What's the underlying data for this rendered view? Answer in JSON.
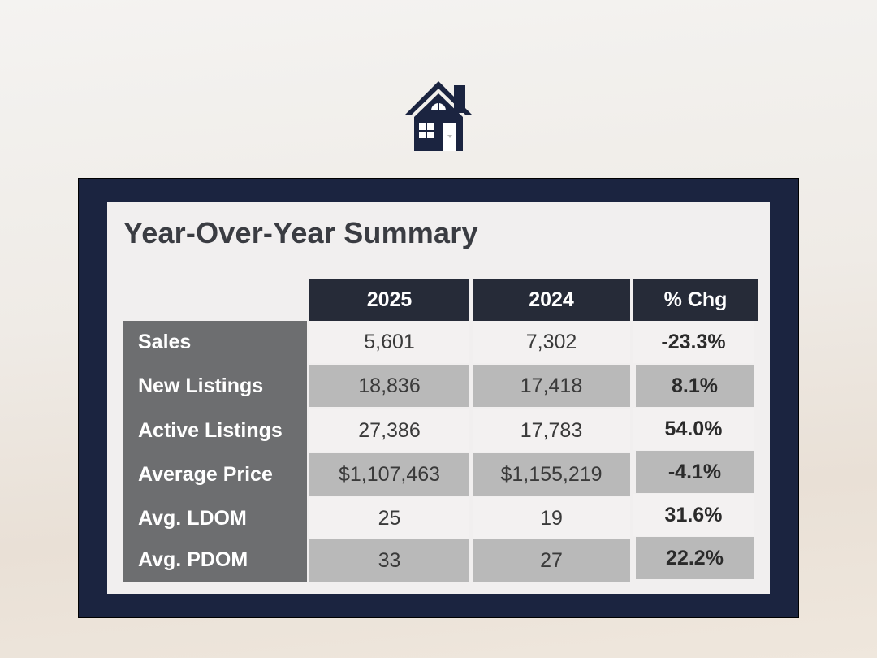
{
  "logo": {
    "icon": "house-icon",
    "color": "#1b2440"
  },
  "summary": {
    "title": "Year-Over-Year Summary",
    "columns": [
      "2025",
      "2024",
      "% Chg"
    ],
    "rows": [
      {
        "label": "Sales",
        "v2025": "5,601",
        "v2024": "7,302",
        "chg": "-23.3%"
      },
      {
        "label": "New Listings",
        "v2025": "18,836",
        "v2024": "17,418",
        "chg": "8.1%"
      },
      {
        "label": "Active Listings",
        "v2025": "27,386",
        "v2024": "17,783",
        "chg": "54.0%"
      },
      {
        "label": "Average Price",
        "v2025": "$1,107,463",
        "v2024": "$1,155,219",
        "chg": "-4.1%"
      },
      {
        "label": "Avg. LDOM",
        "v2025": "25",
        "v2024": "19",
        "chg": "31.6%"
      },
      {
        "label": "Avg. PDOM",
        "v2025": "33",
        "v2024": "27",
        "chg": "22.2%"
      }
    ]
  },
  "colors": {
    "frame": "#1b2440",
    "header": "#262b38",
    "label_column": "#6d6e70",
    "shaded_cell": "#b9b9b9"
  }
}
